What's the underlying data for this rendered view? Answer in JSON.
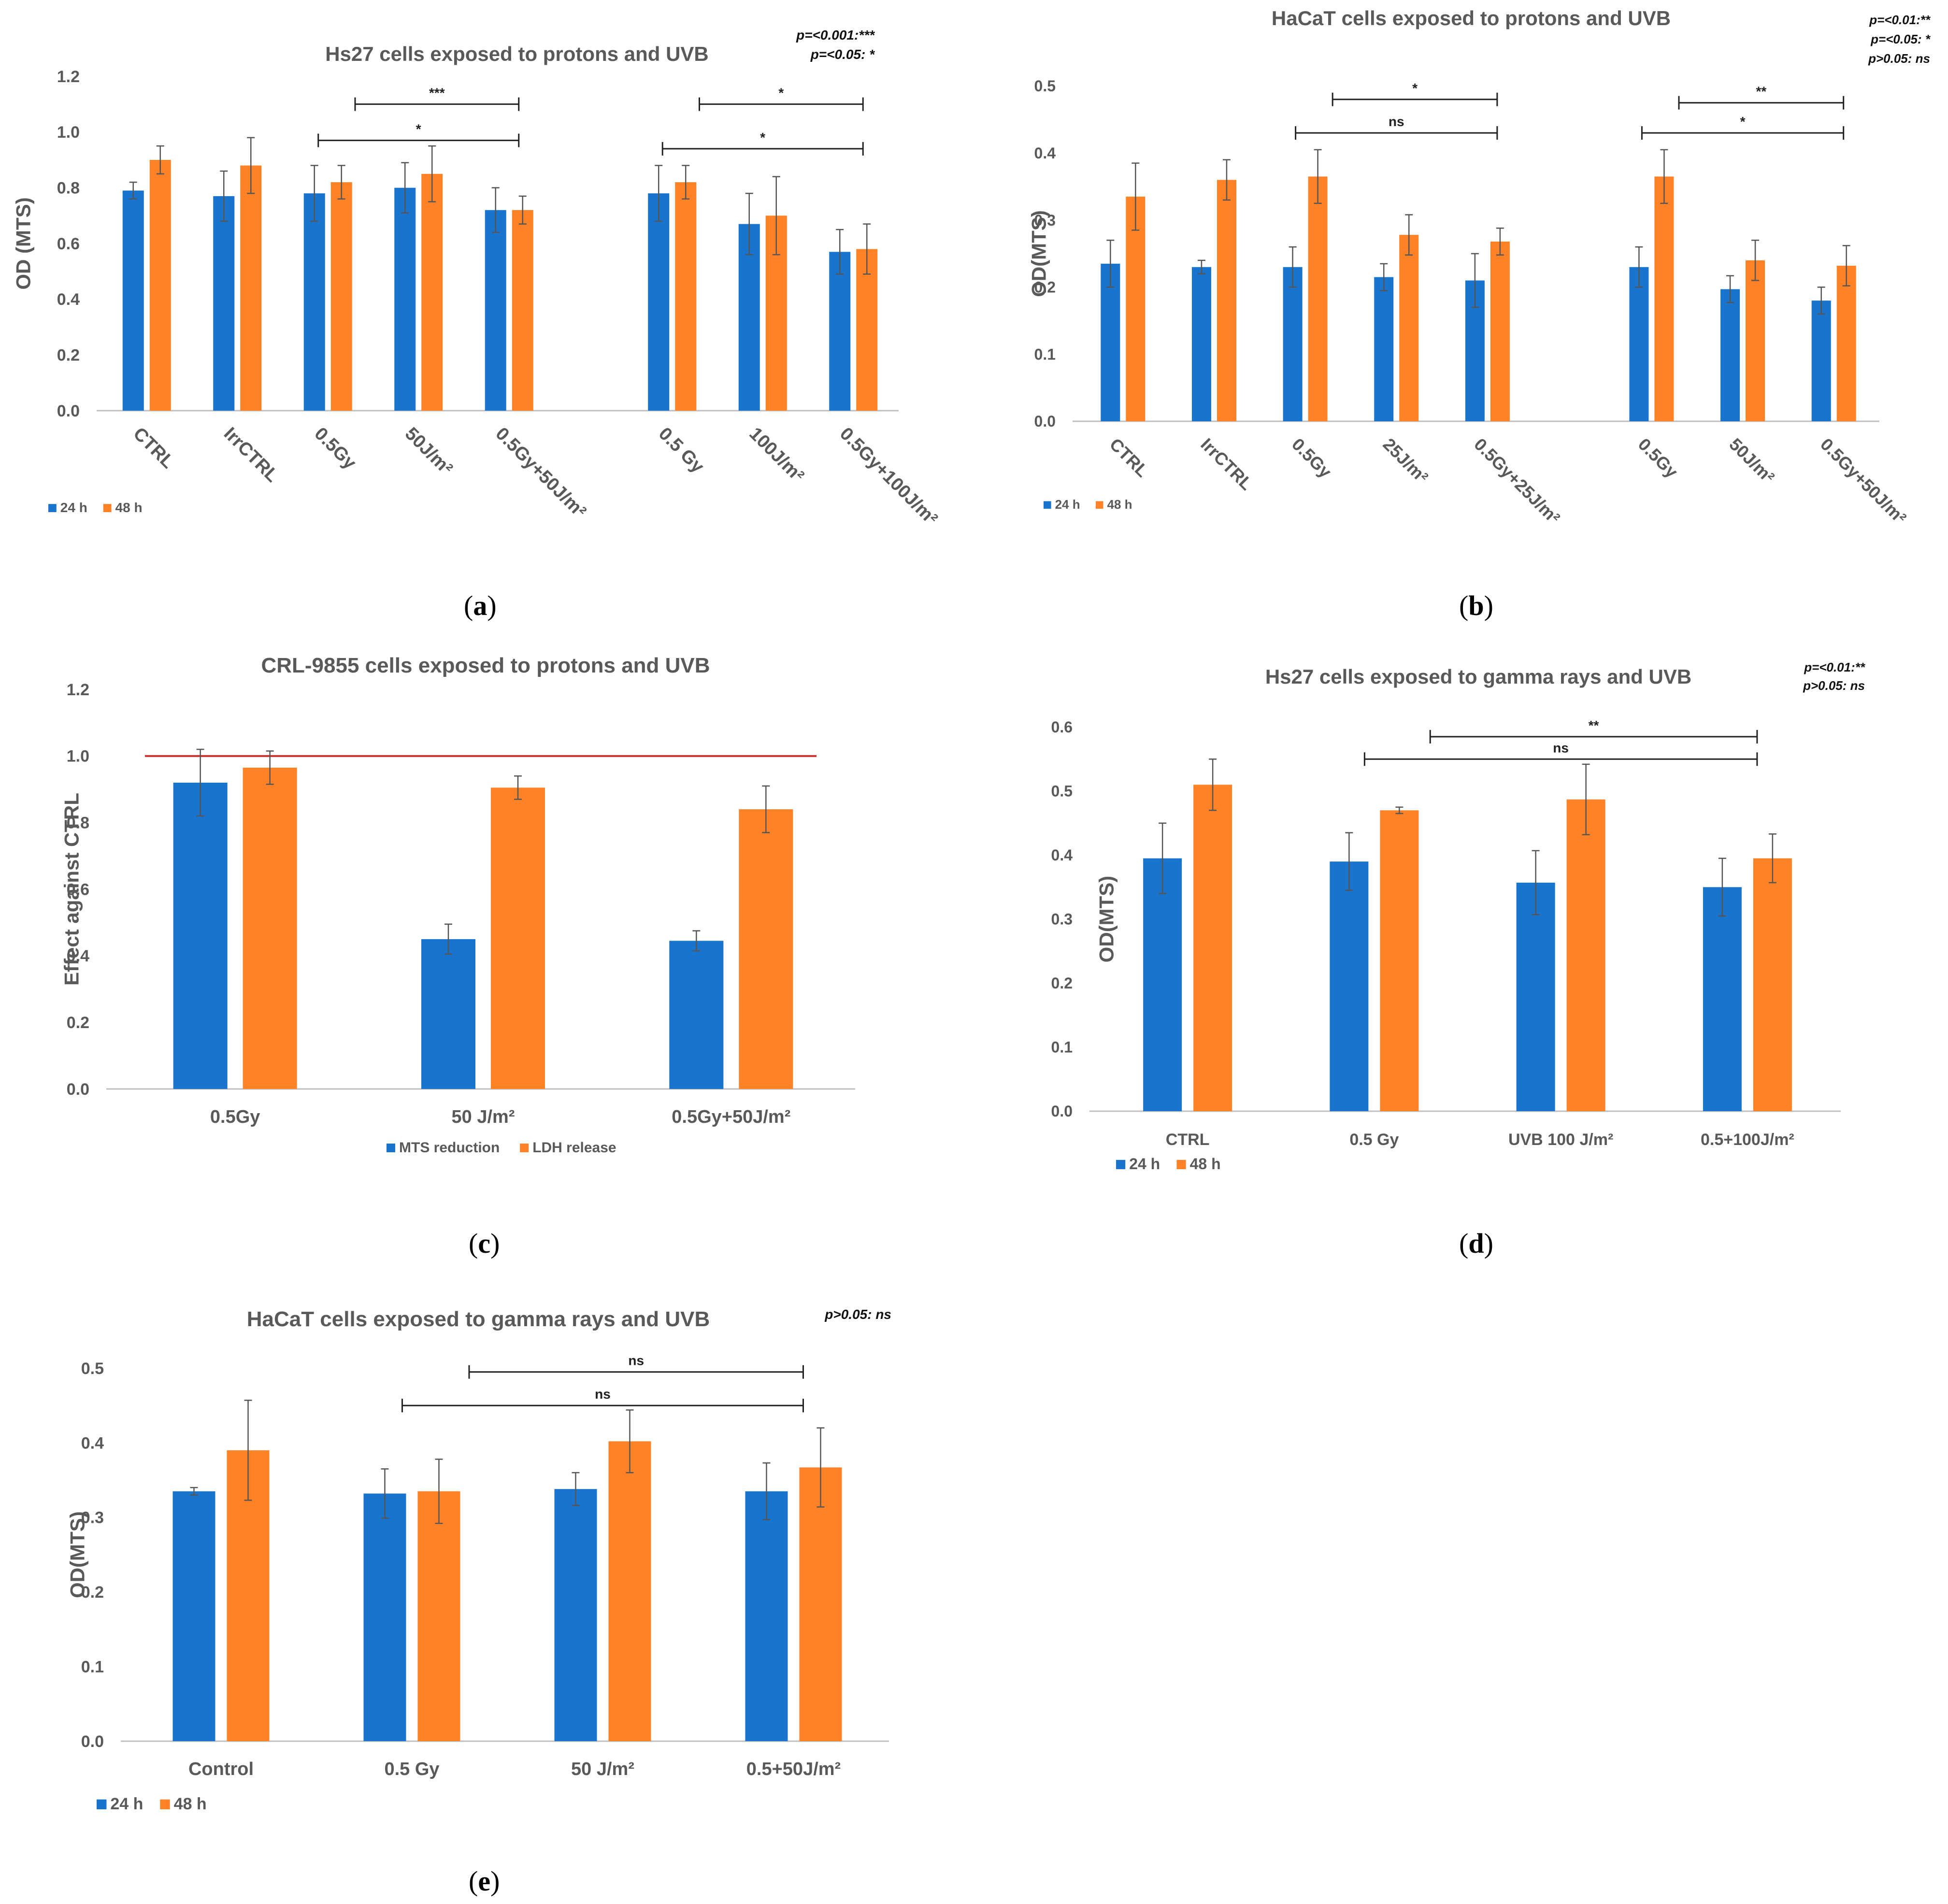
{
  "colors": {
    "s24": "#1874CD",
    "s48": "#FF8227",
    "ref": "#D32F2F",
    "axis": "#BFBFBF",
    "text": "#595959"
  },
  "captions": [
    {
      "label": "a"
    },
    {
      "label": "b"
    },
    {
      "label": "c"
    },
    {
      "label": "d"
    },
    {
      "label": "e"
    }
  ],
  "chart_data": [
    {
      "id": "a",
      "type": "bar",
      "title": "Hs27 cells exposed to protons and UVB",
      "ylabel": "OD (MTS)",
      "xlabel": "",
      "ylim": [
        0,
        1.2
      ],
      "yticks": [
        "0.0",
        "0.2",
        "0.4",
        "0.6",
        "0.8",
        "1.0",
        "1.2"
      ],
      "categories": [
        "CTRL",
        "IrrCTRL",
        "0.5Gy",
        "50J/m²",
        "0.5Gy+50J/m²",
        "0.5 Gy",
        "100J/m²",
        "0.5Gy+100J/m²"
      ],
      "series": [
        {
          "name": "24 h",
          "values": [
            0.79,
            0.77,
            0.78,
            0.8,
            0.72,
            0.78,
            0.67,
            0.57
          ],
          "errors": [
            0.03,
            0.09,
            0.1,
            0.09,
            0.08,
            0.1,
            0.11,
            0.08
          ]
        },
        {
          "name": "48 h",
          "values": [
            0.9,
            0.88,
            0.82,
            0.85,
            0.72,
            0.82,
            0.7,
            0.58
          ],
          "errors": [
            0.05,
            0.1,
            0.06,
            0.1,
            0.05,
            0.06,
            0.14,
            0.09
          ]
        }
      ],
      "significance": [
        {
          "from": 2,
          "to": 4,
          "y": 0.97,
          "label": "*"
        },
        {
          "from": 2,
          "to": 4,
          "y": 1.1,
          "label": "***",
          "x0": 2.3
        },
        {
          "from": 5,
          "to": 7,
          "y": 0.94,
          "label": "*"
        },
        {
          "from": 5,
          "to": 7,
          "y": 1.1,
          "label": "*",
          "x0": 5.3
        }
      ],
      "legend_position": "bottom-left",
      "pvalue_notes": [
        "p=<0.001:***",
        "p=<0.05: *"
      ]
    },
    {
      "id": "b",
      "type": "bar",
      "title": "HaCaT cells exposed to protons and UVB",
      "ylabel": "OD(MTS)",
      "xlabel": "",
      "ylim": [
        0,
        0.5
      ],
      "yticks": [
        "0.0",
        "0.1",
        "0.2",
        "0.3",
        "0.4",
        "0.5"
      ],
      "categories": [
        "CTRL",
        "IrrCTRL",
        "0.5Gy",
        "25J/m²",
        "0.5Gy+25J/m²",
        "0.5Gy",
        "50J/m²",
        "0.5Gy+50J/m²"
      ],
      "series": [
        {
          "name": "24 h",
          "values": [
            0.235,
            0.23,
            0.23,
            0.215,
            0.21,
            0.23,
            0.197,
            0.18
          ],
          "errors": [
            0.035,
            0.01,
            0.03,
            0.02,
            0.04,
            0.03,
            0.02,
            0.02
          ]
        },
        {
          "name": "48 h",
          "values": [
            0.335,
            0.36,
            0.365,
            0.278,
            0.268,
            0.365,
            0.24,
            0.232
          ],
          "errors": [
            0.05,
            0.03,
            0.04,
            0.03,
            0.02,
            0.04,
            0.03,
            0.03
          ]
        }
      ],
      "significance": [
        {
          "from": 2,
          "to": 4,
          "y": 0.43,
          "label": "ns"
        },
        {
          "from": 2,
          "to": 4,
          "y": 0.48,
          "label": "*",
          "x0": 2.3
        },
        {
          "from": 5,
          "to": 7,
          "y": 0.43,
          "label": "*"
        },
        {
          "from": 5,
          "to": 7,
          "y": 0.475,
          "label": "**",
          "x0": 5.3
        }
      ],
      "legend_position": "bottom-left",
      "pvalue_notes": [
        "p=<0.01:**",
        "p=<0.05: *",
        "p>0.05: ns"
      ]
    },
    {
      "id": "c",
      "type": "bar",
      "title": "CRL-9855 cells exposed to protons and UVB",
      "ylabel": "Effect against CTRL",
      "xlabel": "",
      "ylim": [
        0,
        1.2
      ],
      "yticks": [
        "0.0",
        "0.2",
        "0.4",
        "0.6",
        "0.8",
        "1.0",
        "1.2"
      ],
      "categories": [
        "0.5Gy",
        "50 J/m²",
        "0.5Gy+50J/m²"
      ],
      "series": [
        {
          "name": "MTS reduction",
          "values": [
            0.92,
            0.45,
            0.445
          ],
          "errors": [
            0.1,
            0.045,
            0.03
          ]
        },
        {
          "name": "LDH release",
          "values": [
            0.965,
            0.905,
            0.84
          ],
          "errors": [
            0.05,
            0.035,
            0.07
          ]
        }
      ],
      "reference_line": 1.0,
      "legend_position": "bottom-center"
    },
    {
      "id": "d",
      "type": "bar",
      "title": "Hs27 cells exposed to gamma rays and UVB",
      "ylabel": "OD(MTS)",
      "xlabel": "",
      "ylim": [
        0,
        0.6
      ],
      "yticks": [
        "0.0",
        "0.1",
        "0.2",
        "0.3",
        "0.4",
        "0.5",
        "0.6"
      ],
      "categories": [
        "CTRL",
        "0.5 Gy",
        "UVB 100 J/m²",
        "0.5+100J/m²"
      ],
      "series": [
        {
          "name": "24 h",
          "values": [
            0.395,
            0.39,
            0.357,
            0.35
          ],
          "errors": [
            0.055,
            0.045,
            0.05,
            0.045
          ]
        },
        {
          "name": "48 h",
          "values": [
            0.51,
            0.47,
            0.487,
            0.395
          ],
          "errors": [
            0.04,
            0.005,
            0.055,
            0.038
          ]
        }
      ],
      "significance": [
        {
          "from": 1,
          "to": 3,
          "y": 0.55,
          "label": "ns"
        },
        {
          "from": 1,
          "to": 3,
          "y": 0.585,
          "label": "**",
          "x0": 1.3
        }
      ],
      "legend_position": "bottom-left",
      "pvalue_notes": [
        "p=<0.01:**",
        "p>0.05: ns"
      ]
    },
    {
      "id": "e",
      "type": "bar",
      "title": "HaCaT cells exposed to gamma rays and UVB",
      "ylabel": "OD(MTS)",
      "xlabel": "",
      "ylim": [
        0,
        0.5
      ],
      "yticks": [
        "0.0",
        "0.1",
        "0.2",
        "0.3",
        "0.4",
        "0.5"
      ],
      "categories": [
        "Control",
        "0.5 Gy",
        "50 J/m²",
        "0.5+50J/m²"
      ],
      "series": [
        {
          "name": "24 h",
          "values": [
            0.335,
            0.332,
            0.338,
            0.335
          ],
          "errors": [
            0.005,
            0.033,
            0.022,
            0.038
          ]
        },
        {
          "name": "48 h",
          "values": [
            0.39,
            0.335,
            0.402,
            0.367
          ],
          "errors": [
            0.067,
            0.043,
            0.042,
            0.053
          ]
        }
      ],
      "significance": [
        {
          "from": 1,
          "to": 3,
          "y": 0.45,
          "label": "ns"
        },
        {
          "from": 1,
          "to": 3,
          "y": 0.495,
          "label": "ns",
          "x0": 1.3
        }
      ],
      "legend_position": "bottom-left",
      "pvalue_notes": [
        "p>0.05: ns"
      ]
    }
  ]
}
